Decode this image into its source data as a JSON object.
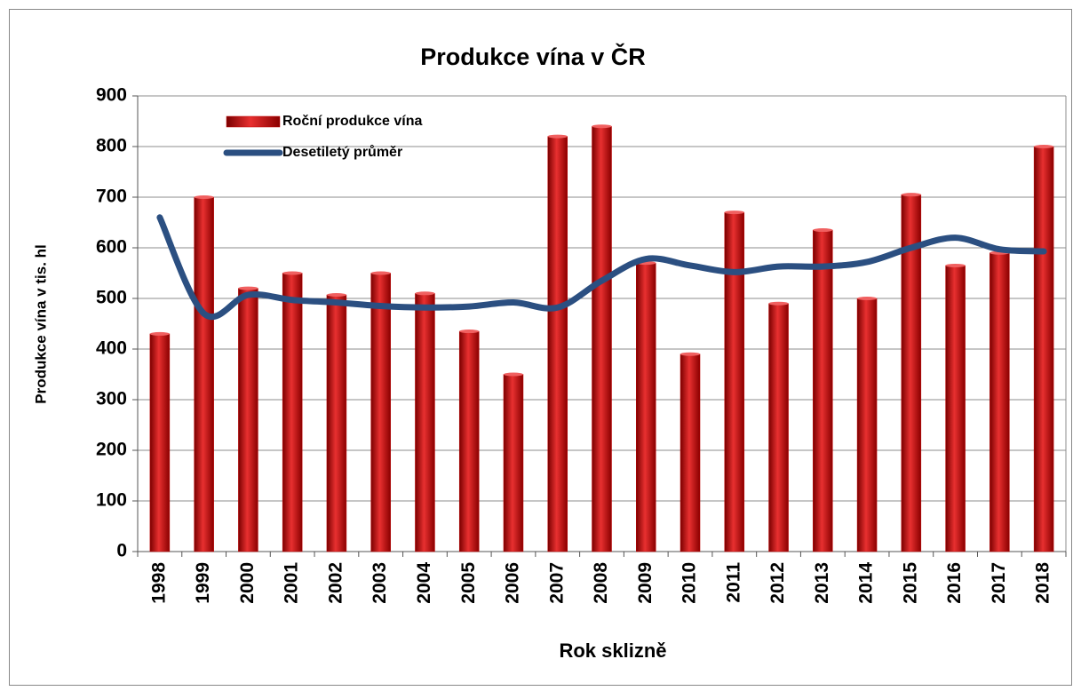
{
  "chart_data": {
    "type": "bar",
    "title": "Produkce vína v ČR",
    "x_label": "Rok sklizně",
    "y_label": "Produkce vína v tis. hl",
    "categories": [
      "1998",
      "1999",
      "2000",
      "2001",
      "2002",
      "2003",
      "2004",
      "2005",
      "2006",
      "2007",
      "2008",
      "2009",
      "2010",
      "2011",
      "2012",
      "2013",
      "2014",
      "2015",
      "2016",
      "2017",
      "2018"
    ],
    "series": [
      {
        "name": "Roční produkce vína",
        "type": "bar",
        "color": "#c00000",
        "values": [
          430,
          700,
          520,
          550,
          507,
          550,
          510,
          435,
          350,
          820,
          840,
          570,
          390,
          670,
          490,
          635,
          500,
          705,
          565,
          590,
          800
        ]
      },
      {
        "name": "Desetiletý průměr",
        "type": "line",
        "color": "#2b4f81",
        "values": [
          660,
          470,
          507,
          497,
          492,
          485,
          482,
          484,
          492,
          482,
          535,
          578,
          565,
          552,
          563,
          563,
          572,
          600,
          620,
          597,
          593
        ]
      }
    ],
    "ylim": [
      0,
      900
    ],
    "yticks": [
      0,
      100,
      200,
      300,
      400,
      500,
      600,
      700,
      800,
      900
    ],
    "grid": true,
    "legend": "top-left"
  }
}
